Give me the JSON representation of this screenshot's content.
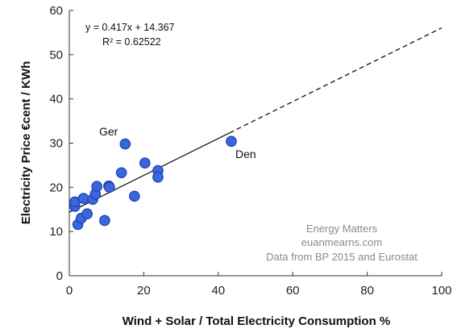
{
  "chart_data": {
    "type": "scatter",
    "title": "",
    "xlabel": "Wind + Solar / Total Electricity Consumption %",
    "ylabel": "Electricity Price €cent / KWh",
    "xlim": [
      0,
      100
    ],
    "ylim": [
      0,
      60
    ],
    "xticks": [
      "0",
      "20",
      "40",
      "60",
      "80",
      "100"
    ],
    "yticks": [
      "0",
      "10",
      "20",
      "30",
      "40",
      "50",
      "60"
    ],
    "grid": false,
    "legend": "none",
    "marker_color": "#3a66e0",
    "points": [
      {
        "x": 1.5,
        "y": 15.7
      },
      {
        "x": 1.5,
        "y": 16.7
      },
      {
        "x": 2.3,
        "y": 11.6
      },
      {
        "x": 3.2,
        "y": 13.0
      },
      {
        "x": 3.8,
        "y": 17.5
      },
      {
        "x": 4.8,
        "y": 14.0
      },
      {
        "x": 6.3,
        "y": 17.3
      },
      {
        "x": 7.0,
        "y": 18.5
      },
      {
        "x": 7.4,
        "y": 20.2
      },
      {
        "x": 9.5,
        "y": 12.5
      },
      {
        "x": 10.6,
        "y": 20.3
      },
      {
        "x": 10.8,
        "y": 20.0
      },
      {
        "x": 14.0,
        "y": 23.3
      },
      {
        "x": 15.0,
        "y": 29.8
      },
      {
        "x": 17.5,
        "y": 18.0
      },
      {
        "x": 20.3,
        "y": 25.5
      },
      {
        "x": 23.8,
        "y": 23.8
      },
      {
        "x": 23.8,
        "y": 22.3
      },
      {
        "x": 43.5,
        "y": 30.4
      }
    ],
    "trendline": {
      "slope": 0.417,
      "intercept": 14.367,
      "solid_to_x": 43,
      "dashed_to_x": 100,
      "equation": "y = 0.417x + 14.367",
      "r2": "R² = 0.62522"
    },
    "annotations": {
      "ger": "Ger",
      "den": "Den"
    },
    "credits": [
      "Energy Matters",
      "euanmearns.com",
      "Data from BP 2015 and Eurostat"
    ]
  }
}
